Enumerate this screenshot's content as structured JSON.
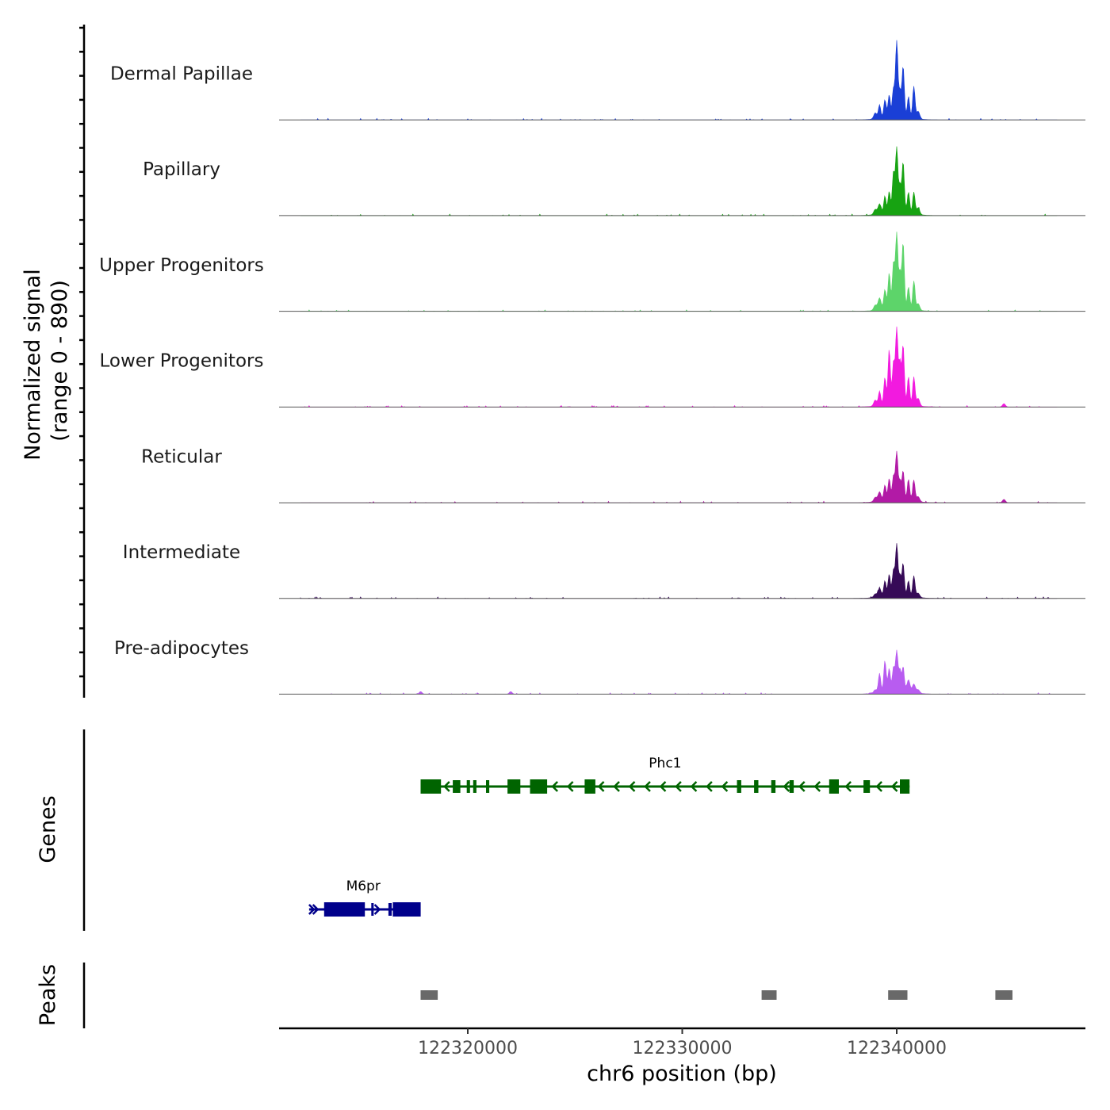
{
  "chart_data": {
    "type": "area",
    "title": "",
    "chromosome": "chr6",
    "xlabel": "chr6 position (bp)",
    "xlim": [
      122311200,
      122348800
    ],
    "xticks": [
      122320000,
      122330000,
      122340000
    ],
    "xtick_labels": [
      "122320000",
      "122330000",
      "122340000"
    ],
    "signal_panel": {
      "ylabel": "Normalized signal",
      "ylabel_range": "(range 0 - 890)",
      "ylim": [
        0,
        890
      ]
    },
    "series": [
      {
        "name": "Dermal Papillae",
        "color": "#1a3fd6",
        "peaks": [
          [
            122339000,
            70
          ],
          [
            122339200,
            160
          ],
          [
            122339450,
            210
          ],
          [
            122339650,
            260
          ],
          [
            122339850,
            330
          ],
          [
            122340000,
            890
          ],
          [
            122340150,
            300
          ],
          [
            122340300,
            600
          ],
          [
            122340550,
            240
          ],
          [
            122340800,
            380
          ],
          [
            122341000,
            90
          ]
        ]
      },
      {
        "name": "Papillary",
        "color": "#17a312",
        "peaks": [
          [
            122339000,
            60
          ],
          [
            122339200,
            120
          ],
          [
            122339450,
            200
          ],
          [
            122339650,
            250
          ],
          [
            122339850,
            480
          ],
          [
            122340000,
            760
          ],
          [
            122340150,
            320
          ],
          [
            122340300,
            600
          ],
          [
            122340550,
            250
          ],
          [
            122340800,
            260
          ],
          [
            122341000,
            80
          ]
        ]
      },
      {
        "name": "Upper Progenitors",
        "color": "#5dd46a",
        "peaks": [
          [
            122339000,
            60
          ],
          [
            122339200,
            140
          ],
          [
            122339450,
            230
          ],
          [
            122339650,
            420
          ],
          [
            122339850,
            540
          ],
          [
            122340000,
            880
          ],
          [
            122340150,
            420
          ],
          [
            122340300,
            780
          ],
          [
            122340550,
            260
          ],
          [
            122340800,
            340
          ],
          [
            122341000,
            80
          ]
        ]
      },
      {
        "name": "Lower Progenitors",
        "color": "#f21adf",
        "peaks": [
          [
            122339000,
            70
          ],
          [
            122339200,
            170
          ],
          [
            122339450,
            320
          ],
          [
            122339650,
            650
          ],
          [
            122339850,
            500
          ],
          [
            122340000,
            890
          ],
          [
            122340150,
            500
          ],
          [
            122340300,
            700
          ],
          [
            122340550,
            330
          ],
          [
            122340800,
            340
          ],
          [
            122341000,
            90
          ],
          [
            122345000,
            40
          ]
        ]
      },
      {
        "name": "Reticular",
        "color": "#b21aa6",
        "peaks": [
          [
            122339000,
            50
          ],
          [
            122339200,
            110
          ],
          [
            122339450,
            180
          ],
          [
            122339650,
            250
          ],
          [
            122339850,
            280
          ],
          [
            122340000,
            560
          ],
          [
            122340150,
            220
          ],
          [
            122340300,
            340
          ],
          [
            122340550,
            250
          ],
          [
            122340800,
            250
          ],
          [
            122341000,
            60
          ],
          [
            122345000,
            40
          ]
        ]
      },
      {
        "name": "Intermediate",
        "color": "#360a57",
        "peaks": [
          [
            122339000,
            40
          ],
          [
            122339200,
            100
          ],
          [
            122339450,
            180
          ],
          [
            122339650,
            250
          ],
          [
            122339850,
            300
          ],
          [
            122340000,
            600
          ],
          [
            122340150,
            230
          ],
          [
            122340300,
            370
          ],
          [
            122340550,
            180
          ],
          [
            122340800,
            250
          ],
          [
            122341000,
            50
          ]
        ]
      },
      {
        "name": "Pre-adipocytes",
        "color": "#b85cf0",
        "peaks": [
          [
            122339000,
            40
          ],
          [
            122339200,
            230
          ],
          [
            122339450,
            370
          ],
          [
            122339650,
            270
          ],
          [
            122339850,
            280
          ],
          [
            122340000,
            470
          ],
          [
            122340150,
            250
          ],
          [
            122340300,
            280
          ],
          [
            122340550,
            140
          ],
          [
            122340800,
            100
          ],
          [
            122341000,
            40
          ],
          [
            122322000,
            30
          ],
          [
            122317800,
            30
          ]
        ]
      }
    ],
    "genes_panel": {
      "ylabel": "Genes",
      "genes": [
        {
          "name": "Phc1",
          "color": "#006400",
          "strand": "-",
          "start": 122317800,
          "end": 122340600,
          "exons": [
            [
              122317800,
              122318750
            ],
            [
              122319300,
              122319650
            ],
            [
              122319950,
              122320100
            ],
            [
              122320250,
              122320400
            ],
            [
              122320850,
              122321000
            ],
            [
              122321850,
              122322450
            ],
            [
              122322900,
              122323700
            ],
            [
              122325450,
              122325950
            ],
            [
              122332550,
              122332750
            ],
            [
              122333350,
              122333550
            ],
            [
              122334150,
              122334350
            ],
            [
              122335000,
              122335200
            ],
            [
              122336850,
              122337300
            ],
            [
              122338450,
              122338750
            ],
            [
              122340150,
              122340600
            ]
          ]
        },
        {
          "name": "M6pr",
          "color": "#00008b",
          "strand": "+",
          "start": 122312600,
          "end": 122317800,
          "exons": [
            [
              122313300,
              122315200
            ],
            [
              122315500,
              122315600
            ],
            [
              122316300,
              122316450
            ],
            [
              122316500,
              122317800
            ]
          ]
        }
      ]
    },
    "peaks_panel": {
      "ylabel": "Peaks",
      "color": "#696969",
      "regions": [
        [
          122317800,
          122318600
        ],
        [
          122333700,
          122334400
        ],
        [
          122339600,
          122340500
        ],
        [
          122344600,
          122345400
        ]
      ]
    }
  }
}
